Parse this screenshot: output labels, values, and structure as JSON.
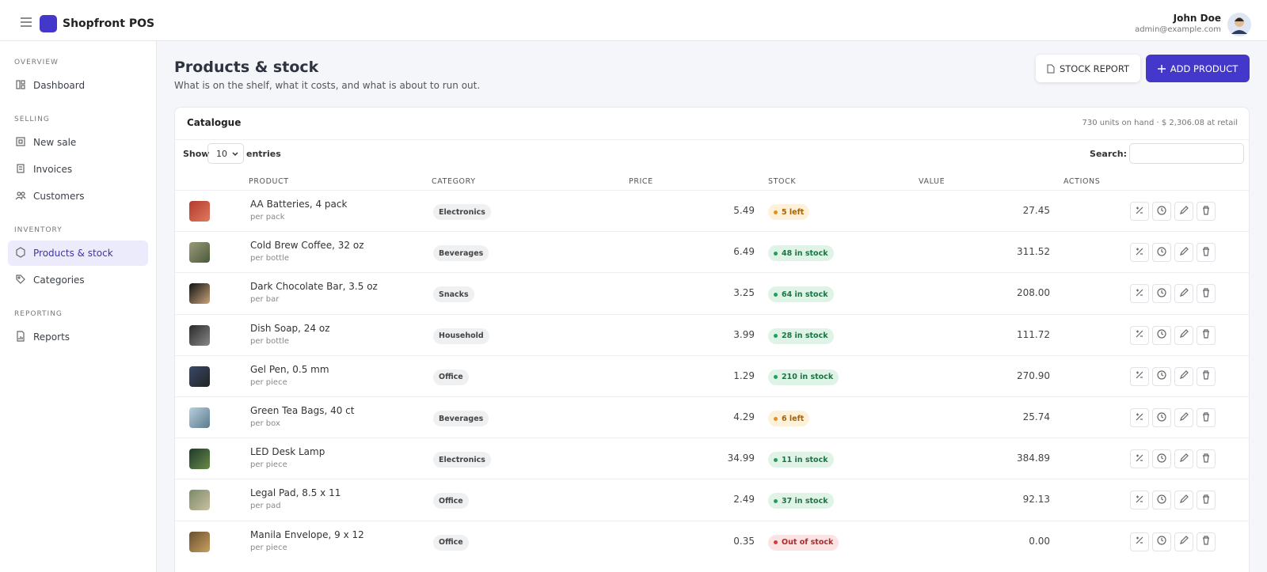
{
  "header": {
    "brand": "Shopfront POS",
    "user_name": "John Doe",
    "user_email": "admin@example.com"
  },
  "sidebar": {
    "sections": [
      {
        "title": "OVERVIEW",
        "items": [
          {
            "label": "Dashboard",
            "active": false
          }
        ]
      },
      {
        "title": "SELLING",
        "items": [
          {
            "label": "New sale",
            "active": false
          },
          {
            "label": "Invoices",
            "active": false
          },
          {
            "label": "Customers",
            "active": false
          }
        ]
      },
      {
        "title": "INVENTORY",
        "items": [
          {
            "label": "Products & stock",
            "active": true
          },
          {
            "label": "Categories",
            "active": false
          }
        ]
      },
      {
        "title": "REPORTING",
        "items": [
          {
            "label": "Reports",
            "active": false
          }
        ]
      }
    ]
  },
  "page": {
    "title": "Products & stock",
    "subtitle": "What is on the shelf, what it costs, and what is about to run out.",
    "buttons": [
      "STOCK REPORT",
      "ADD PRODUCT"
    ]
  },
  "card": {
    "title": "Catalogue",
    "summary": "730 units on hand · $ 2,306.08 at retail",
    "show_label": "Show",
    "page_size": "10",
    "entries_label": "entries",
    "search_label": "Search:"
  },
  "table": {
    "columns": [
      "PRODUCT",
      "CATEGORY",
      "PRICE",
      "STOCK",
      "VALUE",
      "ACTIONS"
    ],
    "rows": [
      {
        "name": "AA Batteries, 4 pack",
        "unit": "per pack",
        "category": "Electronics",
        "price": "5.49",
        "stock": "5 left",
        "level": "low",
        "value": "27.45"
      },
      {
        "name": "Cold Brew Coffee, 32 oz",
        "unit": "per bottle",
        "category": "Beverages",
        "price": "6.49",
        "stock": "48 in stock",
        "level": "ok",
        "value": "311.52"
      },
      {
        "name": "Dark Chocolate Bar, 3.5 oz",
        "unit": "per bar",
        "category": "Snacks",
        "price": "3.25",
        "stock": "64 in stock",
        "level": "ok",
        "value": "208.00"
      },
      {
        "name": "Dish Soap, 24 oz",
        "unit": "per bottle",
        "category": "Household",
        "price": "3.99",
        "stock": "28 in stock",
        "level": "ok",
        "value": "111.72"
      },
      {
        "name": "Gel Pen, 0.5 mm",
        "unit": "per piece",
        "category": "Office",
        "price": "1.29",
        "stock": "210 in stock",
        "level": "ok",
        "value": "270.90"
      },
      {
        "name": "Green Tea Bags, 40 ct",
        "unit": "per box",
        "category": "Beverages",
        "price": "4.29",
        "stock": "6 left",
        "level": "low",
        "value": "25.74"
      },
      {
        "name": "LED Desk Lamp",
        "unit": "per piece",
        "category": "Electronics",
        "price": "34.99",
        "stock": "11 in stock",
        "level": "ok",
        "value": "384.89"
      },
      {
        "name": "Legal Pad, 8.5 x 11",
        "unit": "per pad",
        "category": "Office",
        "price": "2.49",
        "stock": "37 in stock",
        "level": "ok",
        "value": "92.13"
      },
      {
        "name": "Manila Envelope, 9 x 12",
        "unit": "per piece",
        "category": "Office",
        "price": "0.35",
        "stock": "Out of stock",
        "level": "out",
        "value": "0.00"
      }
    ]
  }
}
